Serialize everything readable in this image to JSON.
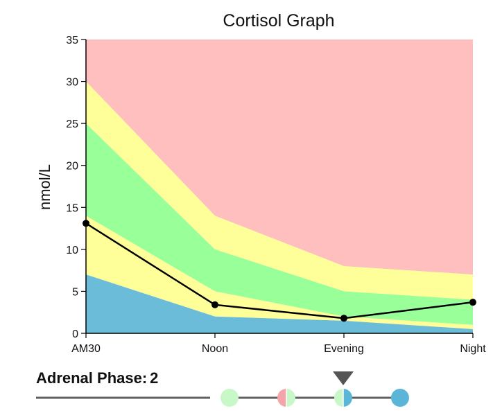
{
  "chart_data": {
    "type": "area",
    "title": "Cortisol Graph",
    "ylabel": "nmol/L",
    "xlabel": "",
    "categories": [
      "AM30",
      "Noon",
      "Evening",
      "Night"
    ],
    "ylim": [
      0,
      35
    ],
    "yticks": [
      0,
      5,
      10,
      15,
      20,
      25,
      30,
      35
    ],
    "bands": [
      {
        "color": "#ffbfbf",
        "lower": [
          30,
          14,
          8,
          7
        ],
        "upper": [
          35,
          35,
          35,
          35
        ]
      },
      {
        "color": "#ffff99",
        "lower": [
          25,
          10,
          5,
          4
        ],
        "upper": [
          30,
          14,
          8,
          7
        ]
      },
      {
        "color": "#99ff99",
        "lower": [
          14,
          5,
          2,
          1
        ],
        "upper": [
          25,
          10,
          5,
          4
        ]
      },
      {
        "color": "#ffff99",
        "lower": [
          7,
          2,
          1.5,
          0.5
        ],
        "upper": [
          14,
          5,
          2,
          1
        ]
      },
      {
        "color": "#6bbcd8",
        "lower": [
          0,
          0,
          0,
          0
        ],
        "upper": [
          7,
          2,
          1.5,
          0.5
        ]
      }
    ],
    "series": [
      {
        "values": [
          13.1,
          3.4,
          1.8,
          3.7
        ],
        "color": "#000000"
      }
    ],
    "grid": false
  },
  "phase": {
    "label": "Adrenal Phase:",
    "value": "2",
    "selected_index": 2,
    "indicators": [
      {
        "left_color": "#c8f7c8",
        "right_color": "#c8f7c8"
      },
      {
        "left_color": "#f3a5a9",
        "right_color": "#c8f7c8"
      },
      {
        "left_color": "#c8f7c8",
        "right_color": "#5bb5d6"
      },
      {
        "left_color": "#5bb5d6",
        "right_color": "#5bb5d6"
      }
    ],
    "line_color": "#606060",
    "marker_color": "#555555"
  }
}
